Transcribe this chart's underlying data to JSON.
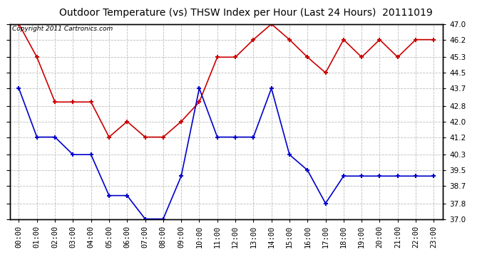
{
  "title": "Outdoor Temperature (vs) THSW Index per Hour (Last 24 Hours)  20111019",
  "copyright": "Copyright 2011 Cartronics.com",
  "hours": [
    "00:00",
    "01:00",
    "02:00",
    "03:00",
    "04:00",
    "05:00",
    "06:00",
    "07:00",
    "08:00",
    "09:00",
    "10:00",
    "11:00",
    "12:00",
    "13:00",
    "14:00",
    "15:00",
    "16:00",
    "17:00",
    "18:00",
    "19:00",
    "20:00",
    "21:00",
    "22:00",
    "23:00"
  ],
  "blue_data": [
    43.7,
    41.2,
    41.2,
    40.3,
    40.3,
    38.2,
    38.2,
    37.0,
    37.0,
    39.2,
    43.7,
    41.2,
    41.2,
    41.2,
    43.7,
    40.3,
    39.5,
    37.8,
    39.2,
    39.2,
    39.2,
    39.2,
    39.2,
    39.2
  ],
  "red_data": [
    47.0,
    45.3,
    43.0,
    43.0,
    43.0,
    41.2,
    42.0,
    41.2,
    41.2,
    42.0,
    43.0,
    45.3,
    45.3,
    46.2,
    47.0,
    46.2,
    45.3,
    44.5,
    46.2,
    45.3,
    46.2,
    45.3,
    46.2,
    46.2
  ],
  "ylim_min": 37.0,
  "ylim_max": 47.0,
  "yticks": [
    37.0,
    37.8,
    38.7,
    39.5,
    40.3,
    41.2,
    42.0,
    42.8,
    43.7,
    44.5,
    45.3,
    46.2,
    47.0
  ],
  "blue_color": "#0000cc",
  "red_color": "#cc0000",
  "bg_color": "#ffffff",
  "grid_color": "#bbbbbb",
  "title_fontsize": 10,
  "copyright_fontsize": 6.5,
  "tick_fontsize": 7.5
}
